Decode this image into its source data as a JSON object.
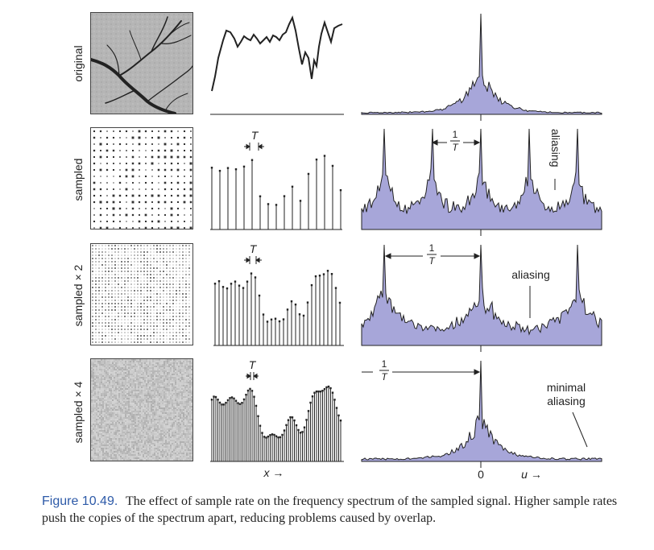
{
  "rows": {
    "original": "original",
    "sampled": "sampled",
    "sampled2": "sampled × 2",
    "sampled4": "sampled × 4"
  },
  "labels": {
    "T": "T",
    "one": "1",
    "aliasing_r2": "aliasing",
    "aliasing_r3": "aliasing",
    "minimal": "minimal",
    "minimal_aliasing": "aliasing",
    "x_axis": "x →",
    "zero": "0",
    "u_axis": "u →"
  },
  "caption": {
    "figure": "Figure 10.49.",
    "text": "The effect of sample rate on the frequency spectrum of the sampled signal. Higher sample rates push the copies of the spectrum apart, reducing problems caused by overlap."
  },
  "colors": {
    "spectrum_fill": "#a7a6d9",
    "spectrum_line": "#222222",
    "figure_blue": "#2d5aa8"
  }
}
